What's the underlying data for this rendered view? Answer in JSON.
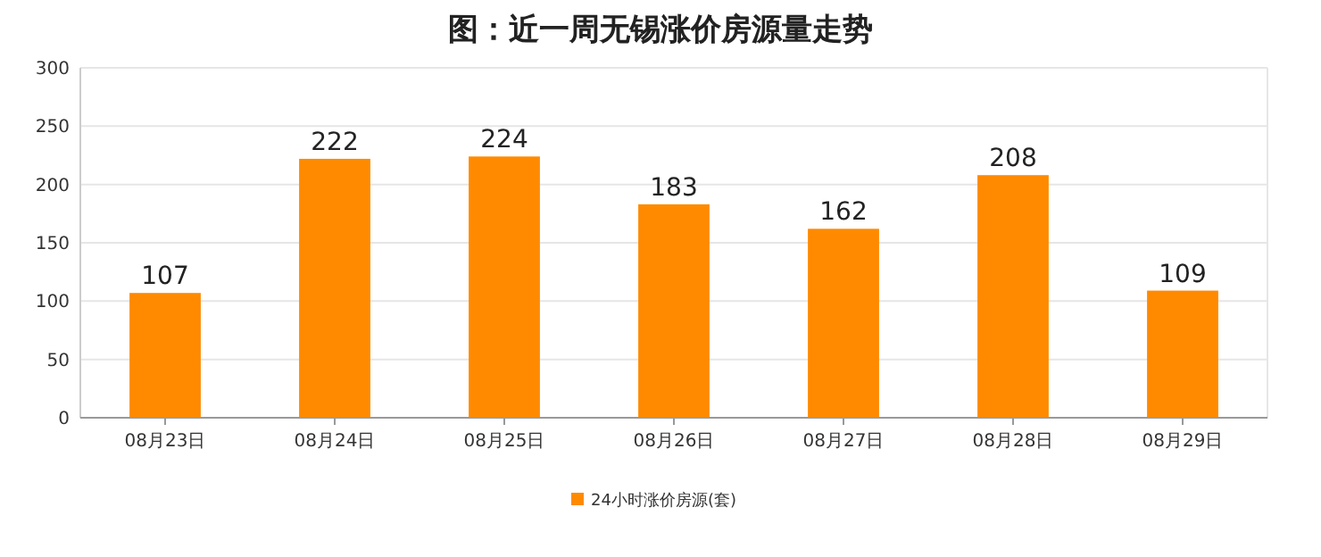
{
  "chart_data": {
    "type": "bar",
    "title": "图：近一周无锡涨价房源量走势",
    "categories": [
      "08月23日",
      "08月24日",
      "08月25日",
      "08月26日",
      "08月27日",
      "08月28日",
      "08月29日"
    ],
    "series": [
      {
        "name": "24小时涨价房源(套)",
        "color": "#ff8a00",
        "values": [
          107,
          222,
          224,
          183,
          162,
          208,
          109
        ]
      }
    ],
    "ylim": [
      0,
      300
    ],
    "yticks": [
      0,
      50,
      100,
      150,
      200,
      250,
      300
    ],
    "grid": "y",
    "legend": "bottom",
    "data_labels": true
  }
}
